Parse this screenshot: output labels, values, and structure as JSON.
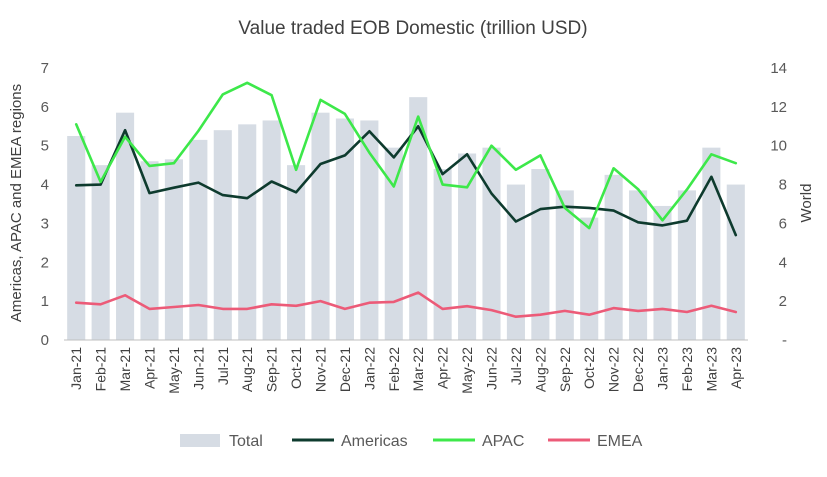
{
  "chart_data": {
    "type": "bar+line",
    "title": "Value traded EOB Domestic (trillion USD)",
    "ylabel_left": "Americas, APAC and EMEA regions",
    "ylabel_right": "World",
    "ylim_left": [
      0,
      7
    ],
    "ylim_right": [
      0,
      14
    ],
    "yticks_left": [
      "0",
      "1",
      "2",
      "3",
      "4",
      "5",
      "6",
      "7"
    ],
    "yticks_right": [
      "-",
      "2",
      "4",
      "6",
      "8",
      "10",
      "12",
      "14"
    ],
    "grid": false,
    "legend_position": "bottom",
    "categories": [
      "Jan-21",
      "Feb-21",
      "Mar-21",
      "Apr-21",
      "May-21",
      "Jun-21",
      "Jul-21",
      "Aug-21",
      "Sep-21",
      "Oct-21",
      "Nov-21",
      "Dec-21",
      "Jan-22",
      "Feb-22",
      "Mar-22",
      "Apr-22",
      "May-22",
      "Jun-22",
      "Jul-22",
      "Aug-22",
      "Sep-22",
      "Oct-22",
      "Nov-22",
      "Dec-22",
      "Jan-23",
      "Feb-23",
      "Mar-23",
      "Apr-23"
    ],
    "series": [
      {
        "name": "Total",
        "kind": "bar",
        "axis": "right",
        "color": "#d6dce4",
        "values": [
          10.5,
          9.0,
          11.7,
          9.2,
          9.3,
          10.3,
          10.8,
          11.1,
          11.3,
          9.0,
          11.7,
          11.4,
          11.3,
          9.9,
          12.5,
          8.8,
          9.6,
          9.9,
          8.0,
          8.8,
          7.7,
          6.3,
          8.5,
          7.7,
          6.9,
          7.7,
          9.9,
          8.0
        ]
      },
      {
        "name": "Americas",
        "kind": "line",
        "axis": "left",
        "color": "#0e3b2e",
        "values": [
          3.98,
          4.0,
          5.4,
          3.78,
          3.92,
          4.05,
          3.73,
          3.65,
          4.08,
          3.8,
          4.53,
          4.75,
          5.37,
          4.7,
          5.5,
          4.27,
          4.78,
          3.77,
          3.05,
          3.37,
          3.43,
          3.4,
          3.33,
          3.03,
          2.95,
          3.07,
          4.2,
          2.7
        ]
      },
      {
        "name": "APAC",
        "kind": "line",
        "axis": "left",
        "color": "#3de84a",
        "values": [
          5.55,
          4.07,
          5.23,
          4.48,
          4.55,
          5.38,
          6.32,
          6.62,
          6.3,
          4.38,
          6.18,
          5.82,
          4.82,
          3.95,
          5.75,
          4.0,
          3.93,
          5.0,
          4.38,
          4.75,
          3.4,
          2.88,
          4.42,
          3.88,
          3.08,
          3.87,
          4.78,
          4.55
        ]
      },
      {
        "name": "EMEA",
        "kind": "line",
        "axis": "left",
        "color": "#ec5b78",
        "values": [
          0.96,
          0.92,
          1.15,
          0.8,
          0.85,
          0.9,
          0.8,
          0.8,
          0.92,
          0.88,
          1.0,
          0.8,
          0.96,
          0.98,
          1.22,
          0.8,
          0.87,
          0.77,
          0.6,
          0.65,
          0.75,
          0.65,
          0.82,
          0.75,
          0.8,
          0.72,
          0.88,
          0.72
        ]
      }
    ]
  }
}
